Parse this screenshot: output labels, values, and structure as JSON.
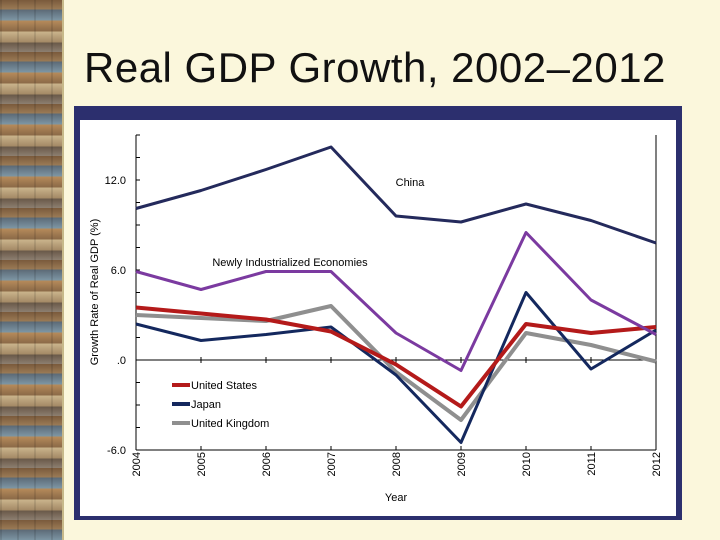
{
  "slide": {
    "title": "Real GDP Growth, 2002–2012"
  },
  "colors": {
    "china": "#242a5c",
    "nie": "#7b3aa0",
    "us": "#b41a1a",
    "japan": "#14285e",
    "uk": "#8f8f8f",
    "frame": "#2c2f6e"
  },
  "chart_data": {
    "type": "line",
    "title": "Real GDP Growth, 2002–2012",
    "xlabel": "Year",
    "ylabel": "Growth Rate of Real GDP (%)",
    "ylim": [
      -6.0,
      15.0
    ],
    "y_ticks": [
      "12.0",
      "6.0",
      ".0",
      "-6.0"
    ],
    "y_tick_values": [
      12,
      6,
      0,
      -6
    ],
    "x": [
      "2004",
      "2005",
      "2006",
      "2007",
      "2008",
      "2009",
      "2010",
      "2011",
      "2012"
    ],
    "series": [
      {
        "name": "China",
        "key": "china",
        "values": [
          10.1,
          11.3,
          12.7,
          14.2,
          9.6,
          9.2,
          10.4,
          9.3,
          7.8
        ]
      },
      {
        "name": "Newly Industrialized Economies",
        "key": "nie",
        "values": [
          5.9,
          4.7,
          5.9,
          5.9,
          1.8,
          -0.7,
          8.5,
          4.0,
          1.7
        ]
      },
      {
        "name": "United States",
        "key": "us",
        "values": [
          3.5,
          3.1,
          2.7,
          1.9,
          -0.3,
          -3.1,
          2.4,
          1.8,
          2.2
        ]
      },
      {
        "name": "Japan",
        "key": "japan",
        "values": [
          2.4,
          1.3,
          1.7,
          2.2,
          -1.0,
          -5.5,
          4.5,
          -0.6,
          2.0
        ]
      },
      {
        "name": "United Kingdom",
        "key": "uk",
        "values": [
          3.0,
          2.8,
          2.6,
          3.6,
          -0.8,
          -4.0,
          1.8,
          1.0,
          -0.1
        ]
      }
    ],
    "annotations": [
      {
        "text": "China",
        "key": "china_label"
      },
      {
        "text": "Newly Industrialized Economies",
        "key": "nie_label"
      }
    ],
    "legend": {
      "placement": "lower-left",
      "entries": [
        {
          "name": "United States",
          "key": "us"
        },
        {
          "name": "Japan",
          "key": "japan"
        },
        {
          "name": "United Kingdom",
          "key": "uk"
        }
      ]
    },
    "grid": false
  }
}
